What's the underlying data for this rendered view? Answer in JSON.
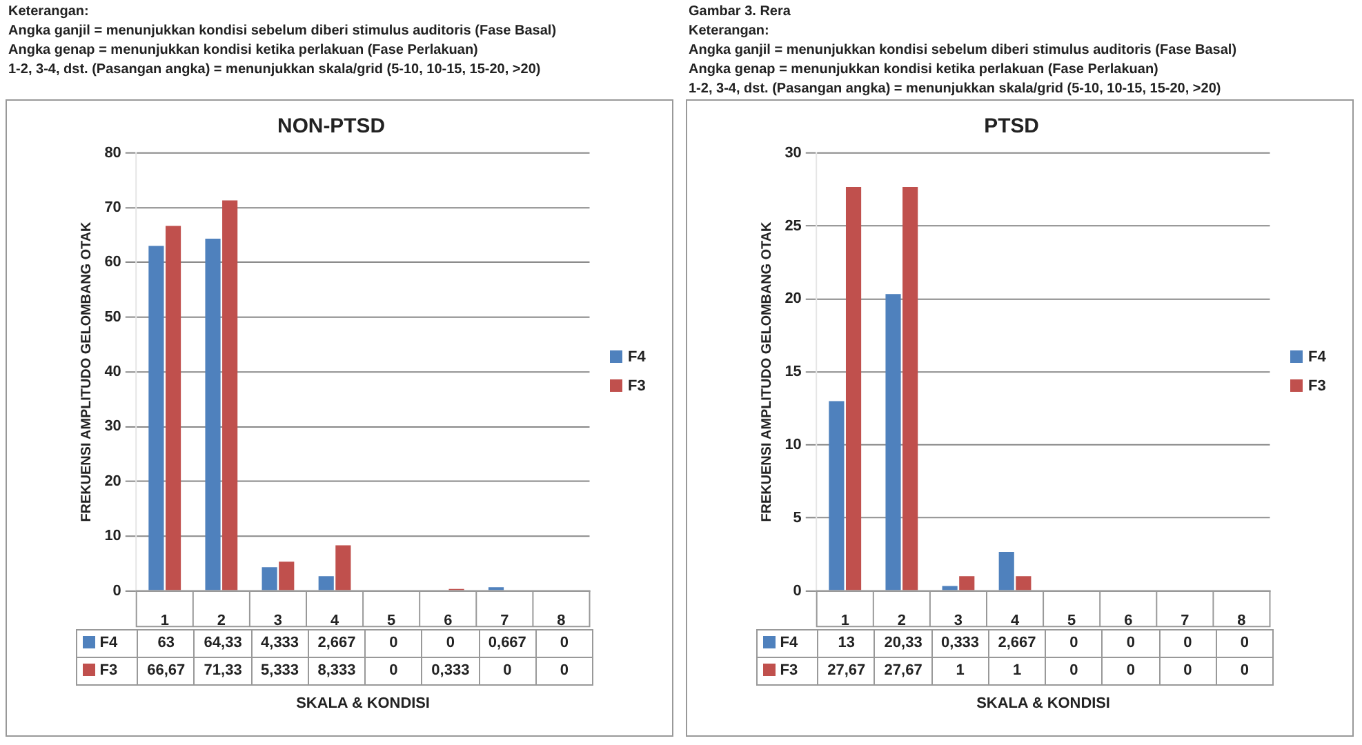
{
  "chart_data": [
    {
      "type": "bar",
      "title": "NON-PTSD",
      "xlabel": "SKALA & KONDISI",
      "ylabel": "FREKUENSI AMPLITUDO GELOMBANG OTAK",
      "annotations": [
        "Keterangan:",
        "Angka ganjil = menunjukkan kondisi sebelum diberi stimulus auditoris (Fase Basal)",
        "Angka genap = menunjukkan kondisi ketika perlakuan (Fase Perlakuan)",
        "1-2, 3-4, dst. (Pasangan angka) = menunjukkan  skala/grid (5-10, 10-15, 15-20, >20)"
      ],
      "categories": [
        "1",
        "2",
        "3",
        "4",
        "5",
        "6",
        "7",
        "8"
      ],
      "series": [
        {
          "name": "F4",
          "color": "#4f81bd",
          "values": [
            63,
            64.33,
            4.333,
            2.667,
            0,
            0,
            0.667,
            0
          ],
          "value_labels": [
            "63",
            "64,33",
            "4,333",
            "2,667",
            "0",
            "0",
            "0,667",
            "0"
          ]
        },
        {
          "name": "F3",
          "color": "#c0504d",
          "values": [
            66.67,
            71.33,
            5.333,
            8.333,
            0,
            0.333,
            0,
            0
          ],
          "value_labels": [
            "66,67",
            "71,33",
            "5,333",
            "8,333",
            "0",
            "0,333",
            "0",
            "0"
          ]
        }
      ],
      "ylim": [
        0,
        80
      ],
      "yticks": [
        0,
        10,
        20,
        30,
        40,
        50,
        60,
        70,
        80
      ],
      "grid": "y",
      "legend": "bottom left"
    },
    {
      "type": "bar",
      "title": "PTSD",
      "xlabel": "SKALA & KONDISI",
      "ylabel": "FREKUENSI AMPLITUDO GELOMBANG OTAK",
      "annotations": [
        "Gambar 3. Rera",
        "Keterangan:",
        "Angka ganjil = menunjukkan kondisi sebelum diberi stimulus auditoris (Fase Basal)",
        "Angka genap = menunjukkan kondisi ketika perlakuan (Fase Perlakuan)",
        "1-2, 3-4, dst. (Pasangan angka) = menunjukkan  skala/grid (5-10, 10-15, 15-20, >20)"
      ],
      "categories": [
        "1",
        "2",
        "3",
        "4",
        "5",
        "6",
        "7",
        "8"
      ],
      "series": [
        {
          "name": "F4",
          "color": "#4f81bd",
          "values": [
            13,
            20.33,
            0.333,
            2.667,
            0,
            0,
            0,
            0
          ],
          "value_labels": [
            "13",
            "20,33",
            "0,333",
            "2,667",
            "0",
            "0",
            "0",
            "0"
          ]
        },
        {
          "name": "F3",
          "color": "#c0504d",
          "values": [
            27.67,
            27.67,
            1,
            1,
            0,
            0,
            0,
            0
          ],
          "value_labels": [
            "27,67",
            "27,67",
            "1",
            "1",
            "0",
            "0",
            "0",
            "0"
          ]
        }
      ],
      "ylim": [
        0,
        30
      ],
      "yticks": [
        0,
        5,
        10,
        15,
        20,
        25,
        30
      ],
      "grid": "y",
      "legend": "bottom left"
    }
  ]
}
